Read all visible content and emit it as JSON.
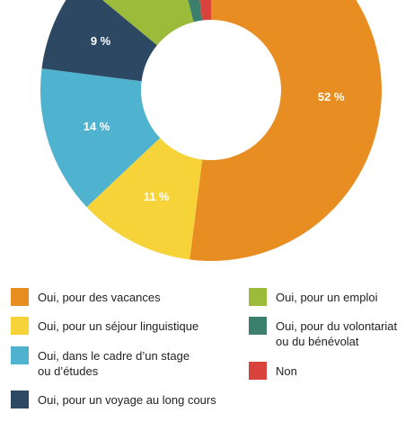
{
  "chart_data": {
    "type": "donut",
    "categories": [
      "Oui, pour des vacances",
      "Oui, pour un séjour linguistique",
      "Oui, dans le cadre d’un stage\nou d’études",
      "Oui, pour un voyage au long cours",
      "Oui, pour un emploi",
      "Oui, pour du volontariat\nou du bénévolat",
      "Non"
    ],
    "values": [
      52,
      11,
      14,
      9,
      10,
      2,
      2
    ],
    "value_labels": [
      "52 %",
      "11 %",
      "14 %",
      "9 %",
      null,
      null,
      null
    ],
    "colors": [
      "#e88d22",
      "#f7d33a",
      "#4fb3cf",
      "#2c4862",
      "#9cbb3a",
      "#3c7f6c",
      "#d8443b"
    ],
    "legend": "bottom"
  }
}
